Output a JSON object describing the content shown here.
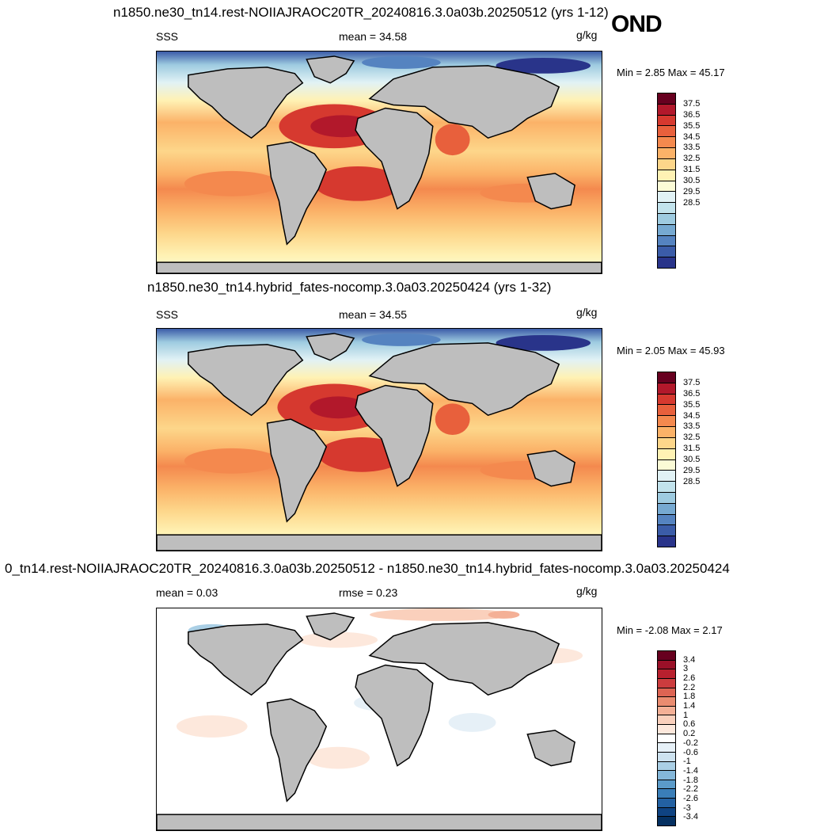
{
  "season": "OND",
  "panels": [
    {
      "title": "n1850.ne30_tn14.rest-NOIIAJRAOC20TR_20240816.3.0a03b.20250512 (yrs 1-12)",
      "left_label": "SSS",
      "center_label": "mean =  34.58",
      "units": "g/kg",
      "minmax": "Min =   2.85 Max =  45.17",
      "colorbar": {
        "ticks": [
          "37.5",
          "36.5",
          "35.5",
          "34.5",
          "33.5",
          "32.5",
          "31.5",
          "30.5",
          "29.5",
          "28.5"
        ],
        "colors": [
          "#67001f",
          "#b2182b",
          "#d6392f",
          "#e8603c",
          "#f4894e",
          "#fbb268",
          "#fdd68a",
          "#fff2b4",
          "#fbfbd6",
          "#e1f2f5",
          "#c2e3ec",
          "#9ecbe0",
          "#76a9d1",
          "#5583c0",
          "#3b5ca8",
          "#29348a"
        ]
      }
    },
    {
      "title": "n1850.ne30_tn14.hybrid_fates-nocomp.3.0a03.20250424 (yrs 1-32)",
      "left_label": "SSS",
      "center_label": "mean =  34.55",
      "units": "g/kg",
      "minmax": "Min =   2.05 Max =  45.93",
      "colorbar": {
        "ticks": [
          "37.5",
          "36.5",
          "35.5",
          "34.5",
          "33.5",
          "32.5",
          "31.5",
          "30.5",
          "29.5",
          "28.5"
        ],
        "colors": [
          "#67001f",
          "#b2182b",
          "#d6392f",
          "#e8603c",
          "#f4894e",
          "#fbb268",
          "#fdd68a",
          "#fff2b4",
          "#fbfbd6",
          "#e1f2f5",
          "#c2e3ec",
          "#9ecbe0",
          "#76a9d1",
          "#5583c0",
          "#3b5ca8",
          "#29348a"
        ]
      }
    },
    {
      "title": "0_tn14.rest-NOIIAJRAOC20TR_20240816.3.0a03b.20250512 - n1850.ne30_tn14.hybrid_fates-nocomp.3.0a03.20250424",
      "left_label": "mean =   0.03",
      "center_label": "rmse =   0.23",
      "units": "g/kg",
      "minmax": "Min =  -2.08 Max =   2.17",
      "colorbar": {
        "ticks": [
          "3.4",
          "3",
          "2.6",
          "2.2",
          "1.8",
          "1.4",
          "1",
          "0.6",
          "0.2",
          "-0.2",
          "-0.6",
          "-1",
          "-1.4",
          "-1.8",
          "-2.2",
          "-2.6",
          "-3",
          "-3.4"
        ],
        "colors": [
          "#67001f",
          "#9a1028",
          "#b8202e",
          "#cc3c3e",
          "#dd6453",
          "#ea8c70",
          "#f4b096",
          "#fad0bc",
          "#fde8dc",
          "#ffffff",
          "#e6f0f7",
          "#cde2ef",
          "#aacfe5",
          "#84b7d9",
          "#5b9bc9",
          "#3a7eb8",
          "#2361a2",
          "#0f4382",
          "#053061"
        ]
      }
    }
  ]
}
